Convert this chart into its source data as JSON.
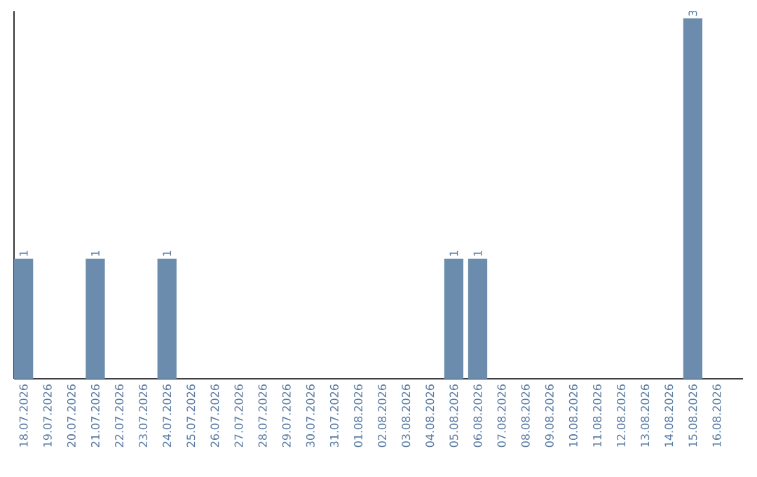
{
  "chart_data": {
    "type": "bar",
    "color": "#6b8cad",
    "categories": [
      "18.07.2026",
      "19.07.2026",
      "20.07.2026",
      "21.07.2026",
      "22.07.2026",
      "23.07.2026",
      "24.07.2026",
      "25.07.2026",
      "26.07.2026",
      "27.07.2026",
      "28.07.2026",
      "29.07.2026",
      "30.07.2026",
      "31.07.2026",
      "01.08.2026",
      "02.08.2026",
      "03.08.2026",
      "04.08.2026",
      "05.08.2026",
      "06.08.2026",
      "07.08.2026",
      "08.08.2026",
      "09.08.2026",
      "10.08.2026",
      "11.08.2026",
      "12.08.2026",
      "13.08.2026",
      "14.08.2026",
      "15.08.2026",
      "16.08.2026"
    ],
    "values": [
      1,
      0,
      0,
      1,
      0,
      0,
      1,
      0,
      0,
      0,
      0,
      0,
      0,
      0,
      0,
      0,
      0,
      0,
      1,
      1,
      0,
      0,
      0,
      0,
      0,
      0,
      0,
      0,
      3,
      0
    ],
    "value_labels": [
      "1",
      null,
      null,
      "1",
      null,
      null,
      "1",
      null,
      null,
      null,
      null,
      null,
      null,
      null,
      null,
      null,
      null,
      null,
      "1",
      "1",
      null,
      null,
      null,
      null,
      null,
      null,
      null,
      null,
      "3",
      null
    ],
    "tick_labels": "x"
  }
}
